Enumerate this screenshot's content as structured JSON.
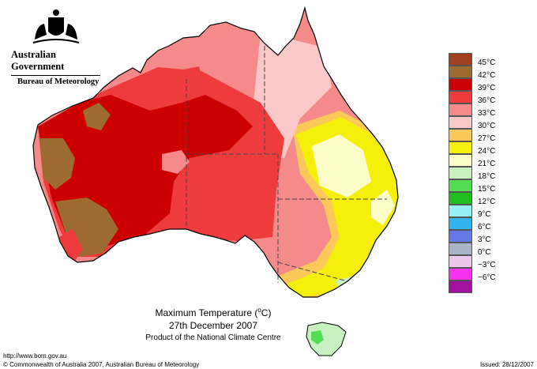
{
  "branding": {
    "government": "Australian Government",
    "agency": "Bureau of Meteorology"
  },
  "map": {
    "title_prefix": "Maximum Temperature (",
    "title_superscript": "o",
    "title_suffix": "C)",
    "date": "27th December 2007",
    "product": "Product of the National Climate Centre"
  },
  "legend": [
    {
      "label": "45°C",
      "color": "#a0401e"
    },
    {
      "label": "42°C",
      "color": "#9c6b32"
    },
    {
      "label": "39°C",
      "color": "#cc0000"
    },
    {
      "label": "36°C",
      "color": "#ee3b3b"
    },
    {
      "label": "33°C",
      "color": "#f48a8a"
    },
    {
      "label": "30°C",
      "color": "#fac8c8"
    },
    {
      "label": "27°C",
      "color": "#fbc85a"
    },
    {
      "label": "24°C",
      "color": "#f5f00a"
    },
    {
      "label": "21°C",
      "color": "#fcfcc8"
    },
    {
      "label": "18°C",
      "color": "#c8f0c0"
    },
    {
      "label": "15°C",
      "color": "#54dc54"
    },
    {
      "label": "12°C",
      "color": "#1ebe1e"
    },
    {
      "label": "9°C",
      "color": "#96f0f5"
    },
    {
      "label": "6°C",
      "color": "#32b4f0"
    },
    {
      "label": "3°C",
      "color": "#6478e6"
    },
    {
      "label": "0°C",
      "color": "#aab4c8"
    },
    {
      "label": "−3°C",
      "color": "#ebc8eb"
    },
    {
      "label": "−6°C",
      "color": "#f532f0"
    },
    {
      "label": "",
      "color": "#a012a0"
    }
  ],
  "footer": {
    "url": "http://www.bom.gov.au",
    "copyright": "© Commonwealth of Australia 2007, Australian Bureau of Meteorology",
    "issued": "Issued: 28/12/2007"
  }
}
